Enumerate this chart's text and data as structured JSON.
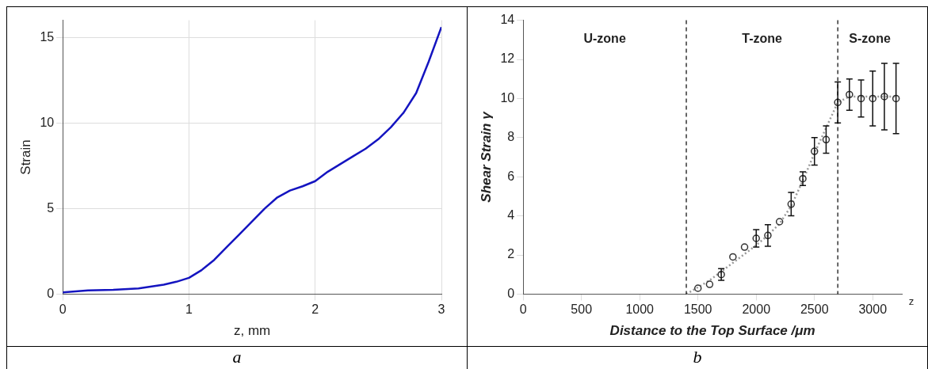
{
  "chart_data": [
    {
      "type": "line",
      "xlabel": "z, mm",
      "ylabel": "Strain",
      "xlim": [
        0,
        3
      ],
      "xticks": [
        0,
        1,
        2,
        3
      ],
      "ylim": [
        0,
        16
      ],
      "yticks": [
        0,
        5,
        10,
        15
      ],
      "grid": true,
      "legend": false,
      "annotations": [
        "a"
      ],
      "series": [
        {
          "color": "#1414c0",
          "x": [
            0,
            0.2,
            0.4,
            0.6,
            0.8,
            0.9,
            1.0,
            1.1,
            1.2,
            1.3,
            1.4,
            1.5,
            1.6,
            1.7,
            1.8,
            1.9,
            2.0,
            2.1,
            2.2,
            2.3,
            2.4,
            2.5,
            2.6,
            2.7,
            2.8,
            2.9,
            3.0
          ],
          "values": [
            0.1,
            0.22,
            0.25,
            0.33,
            0.55,
            0.72,
            0.95,
            1.4,
            2.0,
            2.75,
            3.5,
            4.25,
            5.0,
            5.65,
            6.05,
            6.3,
            6.6,
            7.15,
            7.6,
            8.05,
            8.5,
            9.05,
            9.75,
            10.6,
            11.75,
            13.6,
            15.6
          ]
        }
      ]
    },
    {
      "type": "scatter",
      "xlabel": "Distance to the Top Surface /μm",
      "ylabel": "Shear Strain γ",
      "xlim": [
        0,
        3250
      ],
      "xticks": [
        0,
        500,
        1000,
        1500,
        2000,
        2500,
        3000
      ],
      "ylim": [
        0,
        14
      ],
      "yticks": [
        0,
        2,
        4,
        6,
        8,
        10,
        12,
        14
      ],
      "grid": false,
      "legend": false,
      "annotations": [
        "U-zone",
        "T-zone",
        "S-zone",
        "z",
        "b"
      ],
      "ref_lines": [
        {
          "axis": "x",
          "value": 1400,
          "color": "#000000",
          "line_style": "dashed"
        },
        {
          "axis": "x",
          "value": 2700,
          "color": "#000000",
          "line_style": "dashed"
        }
      ],
      "series": [
        {
          "type": "scatter",
          "marker": "circle",
          "color": "#333333",
          "x": [
            1500,
            1600,
            1700,
            1800,
            1900,
            2000,
            2100,
            2200,
            2300,
            2400,
            2500,
            2600,
            2700,
            2800,
            2900,
            3000,
            3100,
            3200
          ],
          "values": [
            0.3,
            0.5,
            1.0,
            1.9,
            2.4,
            2.85,
            3.0,
            3.7,
            4.6,
            5.9,
            7.3,
            7.9,
            9.8,
            10.2,
            10.0,
            10.0,
            10.1,
            10.0
          ],
          "errors": [
            null,
            null,
            0.3,
            null,
            null,
            0.45,
            0.55,
            null,
            0.6,
            0.35,
            0.7,
            0.7,
            1.05,
            0.8,
            0.95,
            1.4,
            1.7,
            1.8
          ]
        },
        {
          "type": "line",
          "marker": "none",
          "line_style": "dotted",
          "color": "#999999",
          "x": [
            1400,
            1600,
            1800,
            2000,
            2100,
            2200,
            2300,
            2400,
            2500,
            2600,
            2700,
            2800,
            3000,
            3200
          ],
          "values": [
            0,
            0.7,
            1.6,
            2.5,
            3.0,
            3.6,
            4.5,
            5.8,
            7.2,
            8.5,
            9.8,
            10.1,
            10.1,
            10.1
          ]
        }
      ]
    }
  ]
}
